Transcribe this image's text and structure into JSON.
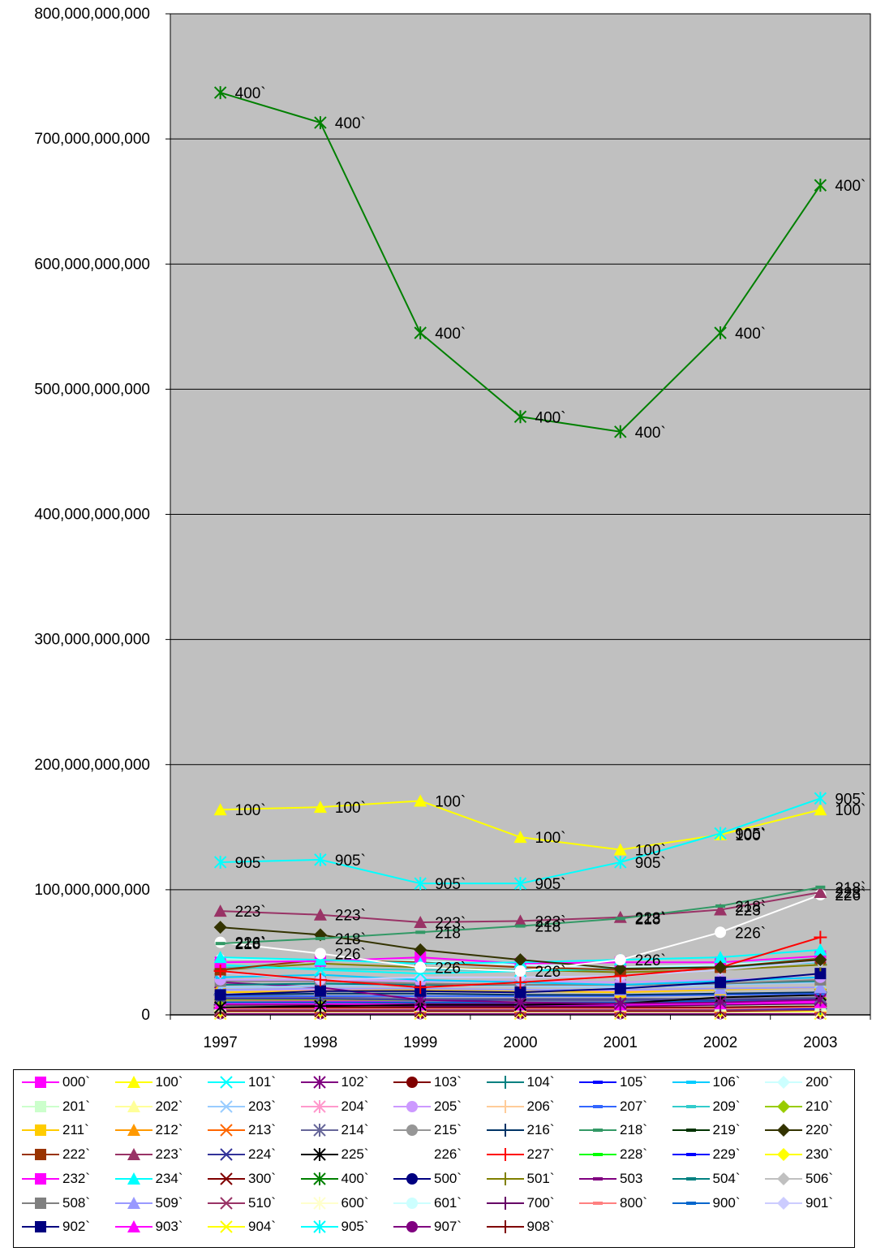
{
  "chart_data": {
    "type": "line",
    "categories": [
      "1997",
      "1998",
      "1999",
      "2000",
      "2001",
      "2002",
      "2003"
    ],
    "ylim": [
      0,
      800000000000
    ],
    "yticks": [
      0,
      100000000000,
      200000000000,
      300000000000,
      400000000000,
      500000000000,
      600000000000,
      700000000000,
      800000000000
    ],
    "ytick_labels": [
      "0",
      "100,000,000,000",
      "200,000,000,000",
      "300,000,000,000",
      "400,000,000,000",
      "500,000,000,000",
      "600,000,000,000",
      "700,000,000,000",
      "800,000,000,000"
    ],
    "grid": true,
    "plot_background": "#c0c0c0",
    "legend_position": "bottom",
    "series": [
      {
        "name": "000`",
        "color": "#ff00ff",
        "marker": "square",
        "values": [
          42000000000,
          43000000000,
          46000000000,
          41000000000,
          42000000000,
          42000000000,
          47000000000
        ]
      },
      {
        "name": "100`",
        "color": "#ffff00",
        "marker": "triangle",
        "values": [
          164000000000,
          166000000000,
          171000000000,
          142000000000,
          132000000000,
          144000000000,
          164000000000
        ],
        "label": "100`"
      },
      {
        "name": "101`",
        "color": "#00ffff",
        "marker": "x",
        "values": [
          40000000000,
          36000000000,
          33000000000,
          35000000000,
          37000000000,
          40000000000,
          45000000000
        ]
      },
      {
        "name": "102`",
        "color": "#800080",
        "marker": "asterisk",
        "values": [
          26000000000,
          22000000000,
          12000000000,
          10000000000,
          9000000000,
          10000000000,
          12000000000
        ]
      },
      {
        "name": "103`",
        "color": "#800000",
        "marker": "circle",
        "values": [
          2000000000,
          2000000000,
          2000000000,
          2000000000,
          2000000000,
          2000000000,
          2000000000
        ]
      },
      {
        "name": "104`",
        "color": "#008080",
        "marker": "plus",
        "values": [
          5000000000,
          5000000000,
          5000000000,
          5000000000,
          5000000000,
          5000000000,
          5000000000
        ]
      },
      {
        "name": "105`",
        "color": "#0000ff",
        "marker": "dash",
        "values": [
          3000000000,
          3000000000,
          3000000000,
          3000000000,
          3000000000,
          3000000000,
          3000000000
        ]
      },
      {
        "name": "106`",
        "color": "#00ccff",
        "marker": "dash",
        "values": [
          30000000000,
          32000000000,
          28000000000,
          26000000000,
          24000000000,
          27000000000,
          30000000000
        ]
      },
      {
        "name": "200`",
        "color": "#ccffff",
        "marker": "diamond",
        "values": [
          45000000000,
          44000000000,
          43000000000,
          40000000000,
          38000000000,
          40000000000,
          44000000000
        ]
      },
      {
        "name": "201`",
        "color": "#ccffcc",
        "marker": "square",
        "values": [
          8000000000,
          8000000000,
          8000000000,
          8000000000,
          8000000000,
          8000000000,
          8000000000
        ]
      },
      {
        "name": "202`",
        "color": "#ffff99",
        "marker": "triangle",
        "values": [
          7000000000,
          7000000000,
          7000000000,
          7000000000,
          7000000000,
          7000000000,
          7000000000
        ]
      },
      {
        "name": "203`",
        "color": "#99ccff",
        "marker": "x",
        "values": [
          22000000000,
          23000000000,
          24000000000,
          23000000000,
          22000000000,
          24000000000,
          26000000000
        ]
      },
      {
        "name": "204`",
        "color": "#ff99cc",
        "marker": "asterisk",
        "values": [
          20000000000,
          20000000000,
          20000000000,
          19000000000,
          19000000000,
          20000000000,
          22000000000
        ]
      },
      {
        "name": "205`",
        "color": "#cc99ff",
        "marker": "circle",
        "values": [
          28000000000,
          28000000000,
          27000000000,
          27000000000,
          26000000000,
          28000000000,
          30000000000
        ]
      },
      {
        "name": "206`",
        "color": "#ffcc99",
        "marker": "plus",
        "values": [
          10000000000,
          10000000000,
          10000000000,
          10000000000,
          10000000000,
          10000000000,
          10000000000
        ]
      },
      {
        "name": "207`",
        "color": "#3366ff",
        "marker": "dash",
        "values": [
          15000000000,
          15000000000,
          15000000000,
          15000000000,
          15000000000,
          16000000000,
          17000000000
        ]
      },
      {
        "name": "209`",
        "color": "#33cccc",
        "marker": "dash",
        "values": [
          38000000000,
          37000000000,
          36000000000,
          36000000000,
          36000000000,
          38000000000,
          42000000000
        ]
      },
      {
        "name": "210`",
        "color": "#99cc00",
        "marker": "diamond",
        "values": [
          12000000000,
          12000000000,
          12000000000,
          12000000000,
          12000000000,
          12000000000,
          13000000000
        ]
      },
      {
        "name": "211`",
        "color": "#ffcc00",
        "marker": "square",
        "values": [
          18000000000,
          19000000000,
          20000000000,
          19000000000,
          18000000000,
          20000000000,
          22000000000
        ]
      },
      {
        "name": "212`",
        "color": "#ff9900",
        "marker": "triangle",
        "values": [
          9000000000,
          9000000000,
          9000000000,
          9000000000,
          9000000000,
          9000000000,
          10000000000
        ]
      },
      {
        "name": "213`",
        "color": "#ff6600",
        "marker": "x",
        "values": [
          6000000000,
          6000000000,
          6000000000,
          6000000000,
          6000000000,
          6000000000,
          6000000000
        ]
      },
      {
        "name": "214`",
        "color": "#666699",
        "marker": "asterisk",
        "values": [
          14000000000,
          14000000000,
          13000000000,
          13000000000,
          13000000000,
          13000000000,
          14000000000
        ]
      },
      {
        "name": "215`",
        "color": "#969696",
        "marker": "circle",
        "values": [
          11000000000,
          11000000000,
          11000000000,
          11000000000,
          11000000000,
          11000000000,
          11000000000
        ]
      },
      {
        "name": "216`",
        "color": "#003366",
        "marker": "plus",
        "values": [
          16000000000,
          17000000000,
          17000000000,
          16000000000,
          16000000000,
          17000000000,
          18000000000
        ]
      },
      {
        "name": "218`",
        "color": "#339966",
        "marker": "dash",
        "values": [
          57000000000,
          61000000000,
          66000000000,
          71000000000,
          77000000000,
          87000000000,
          102000000000
        ],
        "label": "218`"
      },
      {
        "name": "219`",
        "color": "#003300",
        "marker": "dash",
        "values": [
          4000000000,
          4000000000,
          4000000000,
          4000000000,
          4000000000,
          4000000000,
          4000000000
        ]
      },
      {
        "name": "220`",
        "color": "#333300",
        "marker": "diamond",
        "values": [
          70000000000,
          64000000000,
          52000000000,
          44000000000,
          37000000000,
          38000000000,
          44000000000
        ]
      },
      {
        "name": "222`",
        "color": "#993300",
        "marker": "square",
        "values": [
          36000000000,
          44000000000,
          42000000000,
          38000000000,
          36000000000,
          38000000000,
          45000000000
        ]
      },
      {
        "name": "223`",
        "color": "#993366",
        "marker": "triangle",
        "values": [
          83000000000,
          80000000000,
          74000000000,
          75000000000,
          78000000000,
          84000000000,
          98000000000
        ],
        "label": "223`"
      },
      {
        "name": "224`",
        "color": "#333399",
        "marker": "x",
        "values": [
          13000000000,
          13000000000,
          12000000000,
          12000000000,
          12000000000,
          12000000000,
          13000000000
        ]
      },
      {
        "name": "225`",
        "color": "#000000",
        "marker": "asterisk",
        "values": [
          6000000000,
          7000000000,
          8000000000,
          8000000000,
          9000000000,
          14000000000,
          16000000000
        ]
      },
      {
        "name": "226`",
        "color": "#ffffff",
        "marker": "circle",
        "values": [
          58000000000,
          49000000000,
          38000000000,
          35000000000,
          44000000000,
          66000000000,
          96000000000
        ],
        "label": "226`"
      },
      {
        "name": "227`",
        "color": "#ff0000",
        "marker": "plus",
        "values": [
          35000000000,
          28000000000,
          22000000000,
          26000000000,
          31000000000,
          38000000000,
          62000000000
        ]
      },
      {
        "name": "228`",
        "color": "#00ff00",
        "marker": "dash",
        "values": [
          8000000000,
          8000000000,
          8000000000,
          8000000000,
          8000000000,
          8000000000,
          9000000000
        ]
      },
      {
        "name": "229`",
        "color": "#0000ff",
        "marker": "dash",
        "values": [
          5000000000,
          5000000000,
          5000000000,
          5000000000,
          5000000000,
          5000000000,
          5000000000
        ]
      },
      {
        "name": "230`",
        "color": "#ffff00",
        "marker": "diamond",
        "values": [
          3000000000,
          3000000000,
          3000000000,
          3000000000,
          3000000000,
          3000000000,
          3000000000
        ]
      },
      {
        "name": "232`",
        "color": "#ff00ff",
        "marker": "square",
        "values": [
          12000000000,
          11000000000,
          10000000000,
          10000000000,
          10000000000,
          10000000000,
          11000000000
        ]
      },
      {
        "name": "234`",
        "color": "#00ffff",
        "marker": "triangle",
        "values": [
          46000000000,
          44000000000,
          41000000000,
          42000000000,
          44000000000,
          46000000000,
          52000000000
        ]
      },
      {
        "name": "300`",
        "color": "#800000",
        "marker": "x",
        "values": [
          3000000000,
          3000000000,
          3000000000,
          3000000000,
          3000000000,
          3000000000,
          4000000000
        ]
      },
      {
        "name": "400`",
        "color": "#008000",
        "marker": "asterisk",
        "values": [
          737000000000,
          713000000000,
          545000000000,
          478000000000,
          466000000000,
          545000000000,
          663000000000
        ],
        "label": "400`"
      },
      {
        "name": "500`",
        "color": "#000080",
        "marker": "circle",
        "values": [
          1000000000,
          1000000000,
          1000000000,
          1000000000,
          1000000000,
          1000000000,
          1000000000
        ]
      },
      {
        "name": "501`",
        "color": "#808000",
        "marker": "plus",
        "values": [
          36000000000,
          41000000000,
          38000000000,
          36000000000,
          34000000000,
          36000000000,
          40000000000
        ]
      },
      {
        "name": "503",
        "color": "#800080",
        "marker": "dash",
        "values": [
          9000000000,
          9000000000,
          9000000000,
          9000000000,
          9000000000,
          9000000000,
          10000000000
        ]
      },
      {
        "name": "504`",
        "color": "#008080",
        "marker": "dash",
        "values": [
          24000000000,
          25000000000,
          24000000000,
          24000000000,
          24000000000,
          25000000000,
          27000000000
        ]
      },
      {
        "name": "506`",
        "color": "#c0c0c0",
        "marker": "diamond",
        "values": [
          7000000000,
          7000000000,
          7000000000,
          7000000000,
          7000000000,
          7000000000,
          7000000000
        ]
      },
      {
        "name": "508`",
        "color": "#808080",
        "marker": "square",
        "values": [
          27000000000,
          27000000000,
          25000000000,
          24000000000,
          24000000000,
          25000000000,
          28000000000
        ]
      },
      {
        "name": "509`",
        "color": "#9999ff",
        "marker": "triangle",
        "values": [
          20000000000,
          21000000000,
          21000000000,
          20000000000,
          20000000000,
          21000000000,
          22000000000
        ]
      },
      {
        "name": "510`",
        "color": "#993366",
        "marker": "x",
        "values": [
          4000000000,
          4000000000,
          4000000000,
          4000000000,
          4000000000,
          4000000000,
          4000000000
        ]
      },
      {
        "name": "600`",
        "color": "#ffffcc",
        "marker": "asterisk",
        "values": [
          2000000000,
          2000000000,
          2000000000,
          2000000000,
          2000000000,
          2000000000,
          2000000000
        ]
      },
      {
        "name": "601`",
        "color": "#ccffff",
        "marker": "circle",
        "values": [
          1000000000,
          1000000000,
          1000000000,
          1000000000,
          1000000000,
          1000000000,
          1000000000
        ]
      },
      {
        "name": "700`",
        "color": "#660066",
        "marker": "plus",
        "values": [
          8000000000,
          8000000000,
          7000000000,
          7000000000,
          7000000000,
          8000000000,
          9000000000
        ]
      },
      {
        "name": "800`",
        "color": "#ff8080",
        "marker": "dash",
        "values": [
          5000000000,
          5000000000,
          5000000000,
          5000000000,
          5000000000,
          5000000000,
          6000000000
        ]
      },
      {
        "name": "900`",
        "color": "#0066cc",
        "marker": "dash",
        "values": [
          10000000000,
          10000000000,
          10000000000,
          10000000000,
          10000000000,
          11000000000,
          12000000000
        ]
      },
      {
        "name": "901`",
        "color": "#ccccff",
        "marker": "diamond",
        "values": [
          34000000000,
          28000000000,
          30000000000,
          30000000000,
          31000000000,
          36000000000,
          43000000000
        ]
      },
      {
        "name": "902`",
        "color": "#000080",
        "marker": "square",
        "values": [
          16000000000,
          19000000000,
          19000000000,
          18000000000,
          21000000000,
          26000000000,
          33000000000
        ]
      },
      {
        "name": "903`",
        "color": "#ff00ff",
        "marker": "triangle",
        "values": [
          9000000000,
          9000000000,
          8000000000,
          8000000000,
          8000000000,
          9000000000,
          10000000000
        ]
      },
      {
        "name": "904`",
        "color": "#ffff00",
        "marker": "x",
        "values": [
          1000000000,
          1000000000,
          1000000000,
          1000000000,
          1000000000,
          1000000000,
          1000000000
        ]
      },
      {
        "name": "905`",
        "color": "#00ffff",
        "marker": "asterisk",
        "values": [
          122000000000,
          124000000000,
          105000000000,
          105000000000,
          122000000000,
          145000000000,
          173000000000
        ],
        "label": "905`"
      },
      {
        "name": "907`",
        "color": "#800080",
        "marker": "circle",
        "values": [
          1000000000,
          1000000000,
          1000000000,
          1000000000,
          1000000000,
          1000000000,
          1000000000
        ]
      },
      {
        "name": "908`",
        "color": "#800000",
        "marker": "plus",
        "values": [
          6000000000,
          6000000000,
          6000000000,
          6000000000,
          6000000000,
          6000000000,
          7000000000
        ]
      }
    ]
  }
}
